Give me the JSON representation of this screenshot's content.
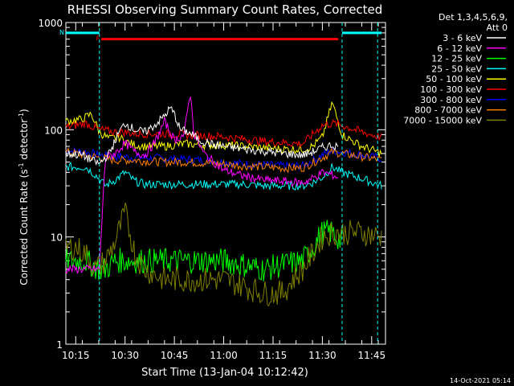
{
  "chart_data": {
    "type": "line",
    "title": "RHESSI Observing Summary Count Rates, Corrected",
    "xlabel": "Start Time (13-Jan-04 10:12:42)",
    "ylabel_main": "Corrected Count Rate (s",
    "ylabel_sup1": "-1",
    "ylabel_mid": " detector",
    "ylabel_sup2": "-1",
    "ylabel_end": ")",
    "yscale": "log",
    "ylim": [
      1,
      1000
    ],
    "xlim_minutes": [
      10.2,
      11.82
    ],
    "x_ticks": [
      {
        "label": "10:15",
        "h": 10.25
      },
      {
        "label": "10:30",
        "h": 10.5
      },
      {
        "label": "10:45",
        "h": 10.75
      },
      {
        "label": "11:00",
        "h": 11.0
      },
      {
        "label": "11:15",
        "h": 11.25
      },
      {
        "label": "11:30",
        "h": 11.5
      },
      {
        "label": "11:45",
        "h": 11.75
      }
    ],
    "y_ticks": [
      {
        "label": "1",
        "v": 1
      },
      {
        "label": "10",
        "v": 10
      },
      {
        "label": "100",
        "v": 100
      },
      {
        "label": "1000",
        "v": 1000
      }
    ],
    "legend_header": [
      "Det 1,3,4,5,6,9,",
      "Att 0"
    ],
    "legend_placement": "top-right",
    "flags": [
      {
        "label": "N",
        "color": "#00ffff",
        "h_start": 10.2,
        "h_end": 10.37,
        "v": 800
      },
      {
        "label": "F",
        "color": "#ff0000",
        "h_start": 10.38,
        "h_end": 11.58,
        "v": 700
      },
      {
        "label": "",
        "color": "#00ffff",
        "h_start": 11.6,
        "h_end": 11.8,
        "v": 800
      }
    ],
    "night_lines": [
      10.37,
      11.6,
      11.78
    ],
    "series": [
      {
        "name": "3 - 6 keV",
        "color": "#ffffff",
        "x": [
          10.2,
          10.28,
          10.33,
          10.37,
          10.42,
          10.47,
          10.5,
          10.55,
          10.6,
          10.65,
          10.7,
          10.73,
          10.75,
          10.78,
          10.82,
          10.88,
          10.95,
          11.0,
          11.1,
          11.2,
          11.3,
          11.4,
          11.45,
          11.5,
          11.55,
          11.58
        ],
        "y": [
          60,
          58,
          52,
          48,
          60,
          95,
          115,
          100,
          95,
          110,
          135,
          160,
          140,
          100,
          95,
          80,
          72,
          70,
          66,
          63,
          60,
          58,
          62,
          68,
          72,
          70
        ]
      },
      {
        "name": "6 - 12 keV",
        "color": "#ff00ff",
        "x": [
          10.2,
          10.3,
          10.35,
          10.37,
          10.4,
          10.45,
          10.5,
          10.55,
          10.6,
          10.65,
          10.7,
          10.75,
          10.8,
          10.83,
          10.85,
          10.9,
          10.95,
          11.0,
          11.1,
          11.2,
          11.3,
          11.4,
          11.45,
          11.5,
          11.55,
          11.58
        ],
        "y": [
          5,
          5,
          5,
          5,
          55,
          60,
          75,
          62,
          58,
          75,
          120,
          80,
          90,
          230,
          90,
          60,
          50,
          42,
          37,
          34,
          33,
          32,
          35,
          40,
          38,
          36
        ]
      },
      {
        "name": "12 - 25 keV",
        "color": "#00ff00",
        "x": [
          10.2,
          10.3,
          10.37,
          10.4,
          10.45,
          10.5,
          10.55,
          10.6,
          10.7,
          10.8,
          10.9,
          11.0,
          11.1,
          11.2,
          11.3,
          11.4,
          11.45,
          11.5,
          11.55,
          11.6
        ],
        "y": [
          6,
          6,
          5,
          5,
          6,
          6,
          6,
          6,
          6,
          6,
          6,
          6,
          5.5,
          5,
          5.5,
          6,
          8,
          11,
          11,
          9
        ]
      },
      {
        "name": "25 - 50 keV",
        "color": "#00ffff",
        "x": [
          10.2,
          10.3,
          10.35,
          10.4,
          10.45,
          10.5,
          10.55,
          10.6,
          10.7,
          10.8,
          10.9,
          11.0,
          11.1,
          11.2,
          11.3,
          11.4,
          11.45,
          11.5,
          11.55,
          11.6,
          11.7,
          11.8
        ],
        "y": [
          45,
          45,
          38,
          30,
          34,
          40,
          33,
          31,
          31,
          31,
          31,
          31,
          31,
          30,
          30,
          30,
          32,
          36,
          45,
          40,
          35,
          30
        ]
      },
      {
        "name": "50 - 100 keV",
        "color": "#ffff00",
        "x": [
          10.2,
          10.28,
          10.33,
          10.37,
          10.42,
          10.47,
          10.5,
          10.55,
          10.6,
          10.7,
          10.8,
          10.9,
          11.0,
          11.1,
          11.2,
          11.3,
          11.4,
          11.45,
          11.5,
          11.55,
          11.6,
          11.7,
          11.8
        ],
        "y": [
          120,
          125,
          140,
          95,
          82,
          85,
          78,
          72,
          70,
          70,
          74,
          72,
          72,
          70,
          68,
          66,
          66,
          70,
          85,
          180,
          90,
          70,
          60
        ]
      },
      {
        "name": "100 - 300 keV",
        "color": "#ff0000",
        "x": [
          10.2,
          10.25,
          10.3,
          10.37,
          10.45,
          10.5,
          10.55,
          10.6,
          10.7,
          10.8,
          10.9,
          11.0,
          11.1,
          11.2,
          11.3,
          11.4,
          11.5,
          11.55,
          11.6,
          11.7,
          11.8
        ],
        "y": [
          105,
          110,
          115,
          100,
          95,
          95,
          92,
          92,
          92,
          90,
          88,
          86,
          82,
          78,
          76,
          74,
          110,
          115,
          110,
          95,
          85
        ]
      },
      {
        "name": "300 - 800 keV",
        "color": "#0000ff",
        "x": [
          10.2,
          10.3,
          10.37,
          10.45,
          10.5,
          10.55,
          10.6,
          10.7,
          10.8,
          10.9,
          11.0,
          11.1,
          11.2,
          11.3,
          11.4,
          11.5,
          11.55,
          11.6,
          11.7,
          11.8
        ],
        "y": [
          64,
          62,
          58,
          56,
          56,
          55,
          55,
          54,
          53,
          52,
          50,
          48,
          47,
          46,
          46,
          58,
          64,
          62,
          58,
          54
        ]
      },
      {
        "name": "800 - 7000 keV",
        "color": "#ff8000",
        "x": [
          10.2,
          10.3,
          10.37,
          10.45,
          10.5,
          10.55,
          10.6,
          10.7,
          10.8,
          10.9,
          11.0,
          11.1,
          11.2,
          11.3,
          11.4,
          11.5,
          11.55,
          11.6,
          11.7,
          11.8
        ],
        "y": [
          62,
          58,
          55,
          52,
          52,
          52,
          51,
          50,
          50,
          49,
          48,
          46,
          45,
          44,
          44,
          55,
          62,
          60,
          56,
          52
        ]
      },
      {
        "name": "7000 - 15000 keV",
        "color": "#808000",
        "x": [
          10.2,
          10.25,
          10.3,
          10.35,
          10.4,
          10.45,
          10.5,
          10.55,
          10.6,
          10.7,
          10.8,
          10.9,
          11.0,
          11.1,
          11.2,
          11.3,
          11.35,
          11.4,
          11.45,
          11.5,
          11.55,
          11.6,
          11.7,
          11.8
        ],
        "y": [
          8,
          8,
          7,
          5,
          6,
          9,
          17,
          7,
          5,
          4,
          4,
          4,
          4,
          3.5,
          3,
          3,
          4,
          5,
          7,
          10,
          11,
          11,
          11,
          10
        ]
      }
    ],
    "footer_date": "14-Oct-2021 05:14"
  }
}
